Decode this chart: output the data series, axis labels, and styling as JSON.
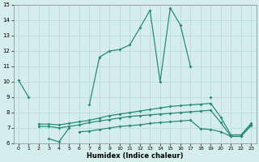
{
  "xlabel": "Humidex (Indice chaleur)",
  "x": [
    0,
    1,
    2,
    3,
    4,
    5,
    6,
    7,
    8,
    9,
    10,
    11,
    12,
    13,
    14,
    15,
    16,
    17,
    18,
    19,
    20,
    21,
    22,
    23
  ],
  "y1": [
    10.1,
    9.0,
    null,
    6.3,
    6.1,
    7.0,
    null,
    8.5,
    11.6,
    12.0,
    12.1,
    12.4,
    13.5,
    14.65,
    10.0,
    14.8,
    13.7,
    11.0,
    null,
    9.0,
    null,
    null,
    null,
    null
  ],
  "y2": [
    null,
    null,
    7.25,
    7.25,
    7.2,
    7.3,
    7.4,
    7.5,
    7.65,
    7.8,
    7.9,
    8.0,
    8.1,
    8.2,
    8.3,
    8.4,
    8.45,
    8.5,
    8.55,
    8.6,
    7.7,
    6.55,
    6.55,
    7.3
  ],
  "y3": [
    null,
    null,
    7.1,
    7.1,
    7.0,
    7.1,
    7.2,
    7.35,
    7.45,
    7.55,
    7.65,
    7.75,
    7.8,
    7.85,
    7.9,
    7.95,
    8.0,
    8.05,
    8.1,
    8.15,
    7.35,
    6.45,
    6.45,
    7.2
  ],
  "y4": [
    null,
    null,
    null,
    null,
    null,
    null,
    6.75,
    6.8,
    6.9,
    7.0,
    7.1,
    7.15,
    7.2,
    7.3,
    7.35,
    7.4,
    7.45,
    7.5,
    6.95,
    6.9,
    6.75,
    6.45,
    6.45,
    7.15
  ],
  "color": "#2a8a78",
  "bg_color": "#d5eeeb",
  "grid_color": "#b8ddd9",
  "ylim": [
    6,
    15
  ],
  "xlim_min": -0.5,
  "xlim_max": 23.5,
  "yticks": [
    6,
    7,
    8,
    9,
    10,
    11,
    12,
    13,
    14,
    15
  ],
  "xticks": [
    0,
    1,
    2,
    3,
    4,
    5,
    6,
    7,
    8,
    9,
    10,
    11,
    12,
    13,
    14,
    15,
    16,
    17,
    18,
    19,
    20,
    21,
    22,
    23
  ]
}
